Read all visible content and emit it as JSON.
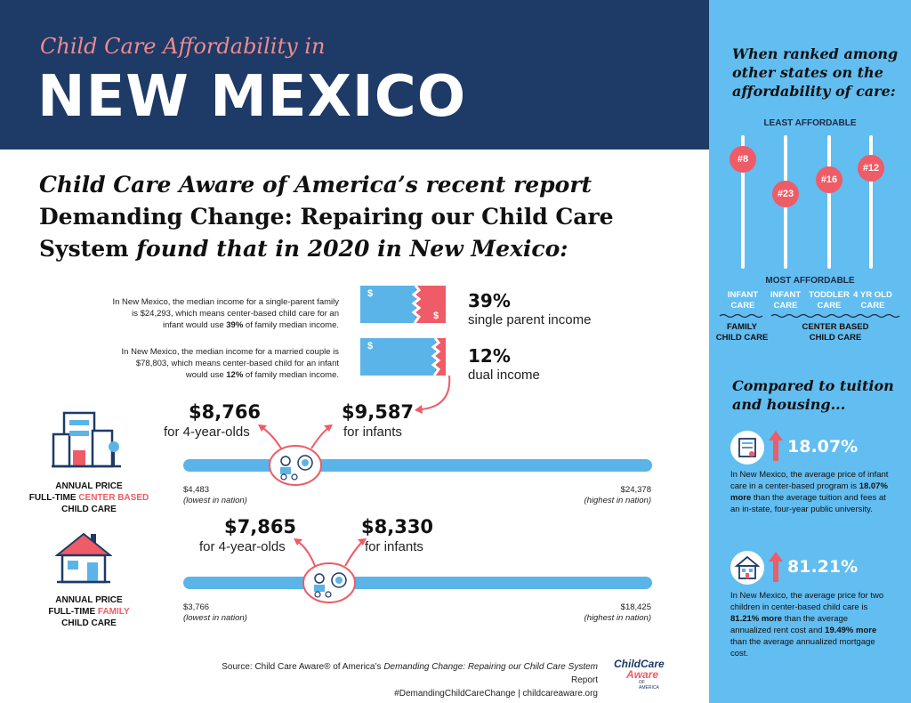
{
  "header": {
    "kicker": "Child Care Affordability in",
    "title": "NEW MEXICO"
  },
  "intro": {
    "line1": "Child Care Aware of America’s recent report",
    "line2": "Demanding Change: Repairing our Child Care",
    "line3a": "System",
    "line3b": " found that in 2020 in New Mexico:"
  },
  "income": [
    {
      "text_pre": "In New Mexico, the median income for a single-parent family is $24,293, which means center-based child care for an infant would use ",
      "text_bold": "39%",
      "text_post": " of family median income.",
      "percent": "39%",
      "label": "single parent income",
      "fraction": 0.39
    },
    {
      "text_pre": "In New Mexico, the median income for a married couple is $78,803, which means center-based child for an infant would use ",
      "text_bold": "12%",
      "text_post": " of family median income.",
      "percent": "12%",
      "label": "dual income",
      "fraction": 0.12
    }
  ],
  "center": {
    "price_4yr": "$8,766",
    "price_4yr_label": "for 4-year-olds",
    "price_inf": "$9,587",
    "price_inf_label": "for infants",
    "low": "$4,483",
    "low_note": "(lowest in nation)",
    "high": "$24,378",
    "high_note": "(highest in nation)",
    "label_l1": "ANNUAL PRICE",
    "label_l2a": "FULL-TIME ",
    "label_l2b": "CENTER BASED",
    "label_l3": "CHILD CARE"
  },
  "family": {
    "price_4yr": "$7,865",
    "price_4yr_label": "for 4-year-olds",
    "price_inf": "$8,330",
    "price_inf_label": "for infants",
    "low": "$3,766",
    "low_note": "(lowest in nation)",
    "high": "$18,425",
    "high_note": "(highest in nation)",
    "label_l1": "ANNUAL PRICE",
    "label_l2a": "FULL-TIME ",
    "label_l2b": "FAMILY",
    "label_l3": "CHILD CARE"
  },
  "source": {
    "pre": "Source: Child Care Aware® of America’s ",
    "title": "Demanding Change: Repairing our Child Care System",
    "post": " Report",
    "line2": "#DemandingChildCareChange | childcareaware.org"
  },
  "logo": {
    "line1": "ChildCare",
    "line2": "Aware",
    "line3": "OF AMERICA"
  },
  "panel": {
    "rank_head": [
      "When ranked among",
      "other states on the",
      "affordability of care:"
    ],
    "least": "LEAST AFFORDABLE",
    "most": "MOST AFFORDABLE",
    "ranks": [
      {
        "rank": "#8",
        "label1": "INFANT",
        "label2": "CARE"
      },
      {
        "rank": "#23",
        "label1": "INFANT",
        "label2": "CARE"
      },
      {
        "rank": "#16",
        "label1": "TODDLER",
        "label2": "CARE"
      },
      {
        "rank": "#12",
        "label1": "4 YR OLD",
        "label2": "CARE"
      }
    ],
    "group1": [
      "FAMILY",
      "CHILD CARE"
    ],
    "group2": [
      "CENTER BASED",
      "CHILD CARE"
    ],
    "cmp_head": [
      "Compared to tuition",
      "and housing..."
    ],
    "cmp1": {
      "pct": "18.07%",
      "pre": "In New Mexico, the average price of infant care in a center-based program is ",
      "bold": "18.07% more",
      "post": " than the average tuition and fees at an in-state, four-year public university."
    },
    "cmp2": {
      "pct": "81.21%",
      "pre": "In New Mexico, the average price for two children in center-based child care is ",
      "bold": "81.21% more",
      "mid": " than the average annualized rent cost and ",
      "bold2": "19.49% more",
      "post": " than the average annualized mortgage cost."
    }
  },
  "colors": {
    "navy": "#1e3a66",
    "blue": "#5ab4e8",
    "red": "#ef5b66",
    "panel": "#62bdf0"
  }
}
